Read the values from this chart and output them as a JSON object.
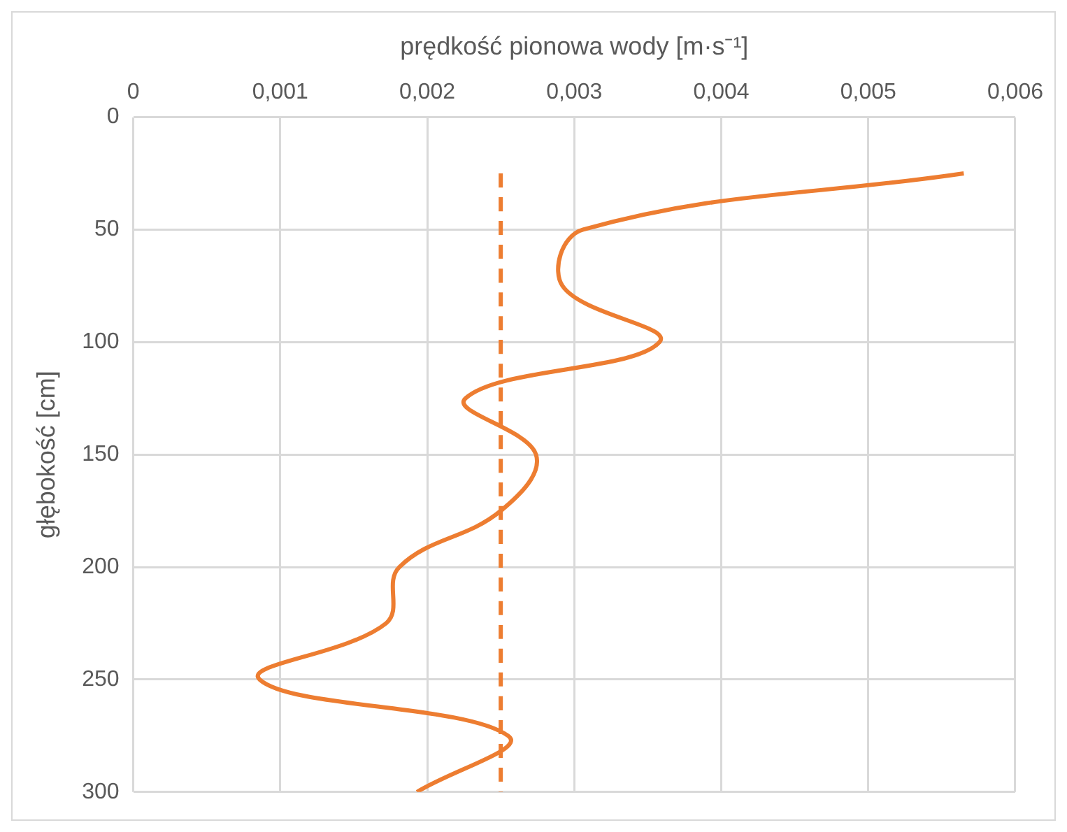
{
  "chart_data": {
    "type": "line",
    "xlabel": "prędkość pionowa wody [m·s⁻¹]",
    "ylabel": "głębokość [cm]",
    "xlim": [
      0,
      0.006
    ],
    "xticks": [
      0,
      {
        "value": 0.001,
        "label": "0,001"
      },
      {
        "value": 0.002,
        "label": "0,002"
      },
      {
        "value": 0.003,
        "label": "0,003"
      },
      {
        "value": 0.004,
        "label": "0,004"
      },
      {
        "value": 0.005,
        "label": "0,005"
      },
      {
        "value": 0.006,
        "label": "0,006"
      }
    ],
    "ylim": [
      300,
      0
    ],
    "yticks": [
      0,
      50,
      100,
      150,
      200,
      250,
      300
    ],
    "grid": true,
    "legend": false,
    "series": [
      {
        "color": "#ed7d31",
        "x": [
          0.00565,
          0.00306,
          0.00292,
          0.00358,
          0.00226,
          0.00274,
          0.0025,
          0.00181,
          0.00172,
          0.00086,
          0.00255,
          0.00193
        ],
        "values": [
          25,
          50,
          75,
          100,
          125,
          150,
          175,
          200,
          225,
          250,
          275,
          300
        ],
        "line_style": "solid"
      },
      {
        "color": "#ed7d31",
        "x": [
          0.0025,
          0.0025
        ],
        "values": [
          25,
          300
        ],
        "line_style": "dashed"
      }
    ]
  }
}
